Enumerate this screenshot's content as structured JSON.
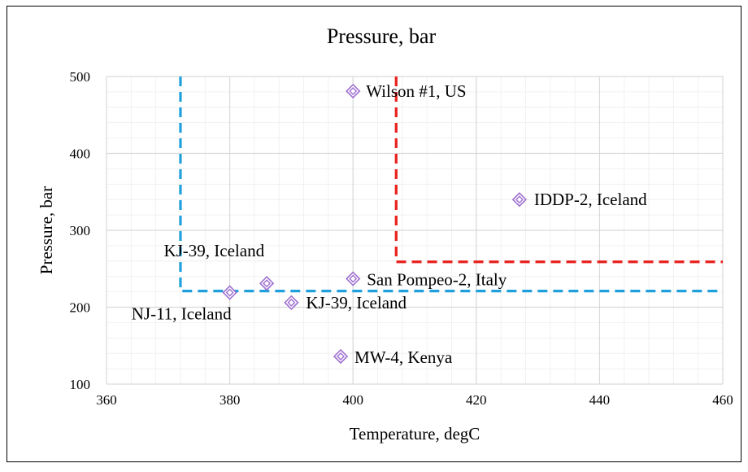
{
  "chart_data": {
    "type": "scatter",
    "title": "Pressure, bar",
    "xlabel": "Temperature, degC",
    "ylabel": "Pressure, bar",
    "xlim": [
      360,
      460
    ],
    "ylim": [
      100,
      500
    ],
    "x_ticks": [
      360,
      380,
      400,
      420,
      440,
      460
    ],
    "y_ticks": [
      100,
      200,
      300,
      400,
      500
    ],
    "x_minor_step": 4,
    "y_minor_step": 20,
    "grid": true,
    "legend": "none",
    "marker": {
      "shape": "diamond",
      "color": "#9e6fd0",
      "fill": "#ffffff"
    },
    "points": [
      {
        "x": 400,
        "y": 481,
        "label": "Wilson #1, US"
      },
      {
        "x": 427,
        "y": 340,
        "label": "IDDP-2, Iceland"
      },
      {
        "x": 400,
        "y": 237,
        "label": "San Pompeo-2, Italy"
      },
      {
        "x": 386,
        "y": 231,
        "label": "KJ-39, Iceland"
      },
      {
        "x": 380,
        "y": 219,
        "label": "NJ-11, Iceland"
      },
      {
        "x": 390,
        "y": 206,
        "label": "KJ-39, Iceland"
      },
      {
        "x": 398,
        "y": 136,
        "label": "MW-4, Kenya"
      }
    ],
    "threshold_lines": [
      {
        "name": "blue",
        "color": "#1fa0dc",
        "x": 372,
        "y": 221
      },
      {
        "name": "red",
        "color": "#e8201c",
        "x": 407,
        "y": 259
      }
    ]
  }
}
